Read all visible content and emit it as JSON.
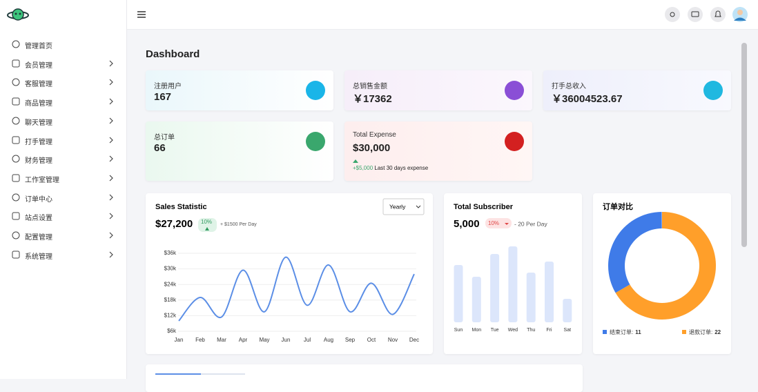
{
  "sidebar": {
    "items": [
      "管理首页",
      "会员管理",
      "客服管理",
      "商品管理",
      "聊天管理",
      "打手管理",
      "财务管理",
      "工作室管理",
      "订单中心",
      "站点设置",
      "配置管理",
      "系统管理"
    ]
  },
  "page_title": "Dashboard",
  "cards": [
    {
      "label": "注册用户",
      "value": "167"
    },
    {
      "label": "总销售金额",
      "value": "￥17362"
    },
    {
      "label": "打手总收入",
      "value": "￥36004523.67"
    },
    {
      "label": "总订单",
      "value": "66"
    },
    {
      "label": "Total Expense",
      "value": "$30,000",
      "change": "+$5,000",
      "note": "Last 30 days expense"
    }
  ],
  "chart_data": [
    {
      "type": "line",
      "title": "Sales Statistic",
      "total": "$27,200",
      "badge": "10%",
      "note": "+ $1500 Per Day",
      "filter": "Yearly",
      "categories": [
        "Jan",
        "Feb",
        "Mar",
        "Apr",
        "May",
        "Jun",
        "Jul",
        "Aug",
        "Sep",
        "Oct",
        "Nov",
        "Dec"
      ],
      "values": [
        10000,
        19000,
        11500,
        29500,
        13500,
        34500,
        16000,
        31500,
        13500,
        24500,
        12500,
        28000
      ],
      "color": "#5b8ee6",
      "ylim": [
        6000,
        36000
      ],
      "yticks": [
        {
          "value": 6000,
          "label": "$6k"
        },
        {
          "value": 12000,
          "label": "$12k"
        },
        {
          "value": 18000,
          "label": "$18k"
        },
        {
          "value": 24000,
          "label": "$24k"
        },
        {
          "value": 30000,
          "label": "$30k"
        },
        {
          "value": 36000,
          "label": "$36k"
        }
      ],
      "grid": true
    },
    {
      "type": "bar",
      "title": "Total Subscriber",
      "total": "5,000",
      "badge": "10%",
      "note": "- 20 Per Day",
      "categories": [
        "Sun",
        "Mon",
        "Tue",
        "Wed",
        "Thu",
        "Fri",
        "Sat"
      ],
      "values": [
        83,
        66,
        99,
        110,
        72,
        88,
        34
      ],
      "color": "#dce6fb"
    },
    {
      "type": "donut",
      "title": "订单对比",
      "categories": [
        "结束订单:",
        "退款订单:"
      ],
      "values": [
        11,
        22
      ],
      "colors": [
        "#3f7be8",
        "#ff9f2a"
      ]
    }
  ]
}
